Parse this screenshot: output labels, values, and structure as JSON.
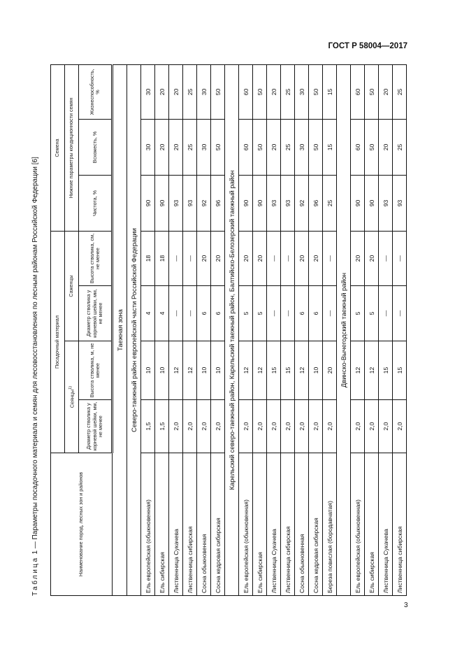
{
  "document": {
    "code": "ГОСТ Р 58004—2017",
    "page_number": "3"
  },
  "caption": {
    "label": "Таблица",
    "text": " 1 — Параметры посадочного материала и семян для лесовосстановления по лесным районам Российской Федерации [6]"
  },
  "header": {
    "name_col": "Наименование пород, лесных зон и районов",
    "planting_material": "Посадочный материал",
    "seeds": "Семена",
    "seedlings": "Сеянцы",
    "seedlings_note": "1)",
    "saplings": "Саженцы",
    "seed_params": "Нижние параметры кондиционности семян",
    "seedling_diameter": "Диаметр стволика у корневой шейки, мм, не менее",
    "seedling_height": "Высота стволика, м, не менее",
    "sapling_diameter": "Диаметр стволика у корневой шейки, мм, не менее",
    "sapling_height": "Высота стволика, см, не менее",
    "purity": "Чистота, %",
    "germination": "Всхожесть, %",
    "viability": "Жизнеспособность, %"
  },
  "zone": "Таежная зона",
  "groups": [
    {
      "region": "Северо-таежный район европейской части Российской Федерации",
      "rows": [
        [
          "Ель европейская (обыкновенная)",
          "1,5",
          "10",
          "4",
          "18",
          "90",
          "30",
          "30"
        ],
        [
          "Ель сибирская",
          "1,5",
          "10",
          "4",
          "18",
          "90",
          "20",
          "20"
        ],
        [
          "Лиственница Сукачева",
          "2,0",
          "12",
          "—",
          "—",
          "93",
          "20",
          "20"
        ],
        [
          "Лиственница сибирская",
          "2,0",
          "12",
          "—",
          "—",
          "93",
          "25",
          "25"
        ],
        [
          "Сосна обыкновенная",
          "2,0",
          "10",
          "6",
          "20",
          "92",
          "30",
          "30"
        ],
        [
          "Сосна кедровая сибирская",
          "2,0",
          "10",
          "6",
          "20",
          "96",
          "50",
          "50"
        ]
      ]
    },
    {
      "region": "Карельский северо-таежный район, Карельский таежный район, Балтийско-Белозерский таежный район",
      "rows": [
        [
          "Ель европейская (обыкновенная)",
          "2,0",
          "12",
          "5",
          "20",
          "90",
          "60",
          "60"
        ],
        [
          "Ель сибирская",
          "2,0",
          "12",
          "5",
          "20",
          "90",
          "50",
          "50"
        ],
        [
          "Лиственница Сукачева",
          "2,0",
          "15",
          "—",
          "—",
          "93",
          "20",
          "20"
        ],
        [
          "Лиственница сибирская",
          "2,0",
          "15",
          "—",
          "—",
          "93",
          "25",
          "25"
        ],
        [
          "Сосна обыкновенная",
          "2,0",
          "12",
          "6",
          "20",
          "92",
          "30",
          "30"
        ],
        [
          "Сосна кедровая сибирская",
          "2,0",
          "10",
          "6",
          "20",
          "96",
          "50",
          "50"
        ],
        [
          "Береза повислая (бородавчатая)",
          "2,0",
          "20",
          "—",
          "—",
          "25",
          "15",
          "15"
        ]
      ]
    },
    {
      "region": "Двинско-Вычегодский таежный район",
      "rows": [
        [
          "Ель европейская (обыкновенная)",
          "2,0",
          "12",
          "5",
          "20",
          "90",
          "60",
          "60"
        ],
        [
          "Ель сибирская",
          "2,0",
          "12",
          "5",
          "20",
          "90",
          "50",
          "50"
        ],
        [
          "Лиственница Сукачева",
          "2,0",
          "15",
          "—",
          "—",
          "93",
          "20",
          "20"
        ],
        [
          "Лиственница сибирская",
          "2,0",
          "15",
          "—",
          "—",
          "93",
          "25",
          "25"
        ]
      ]
    }
  ]
}
